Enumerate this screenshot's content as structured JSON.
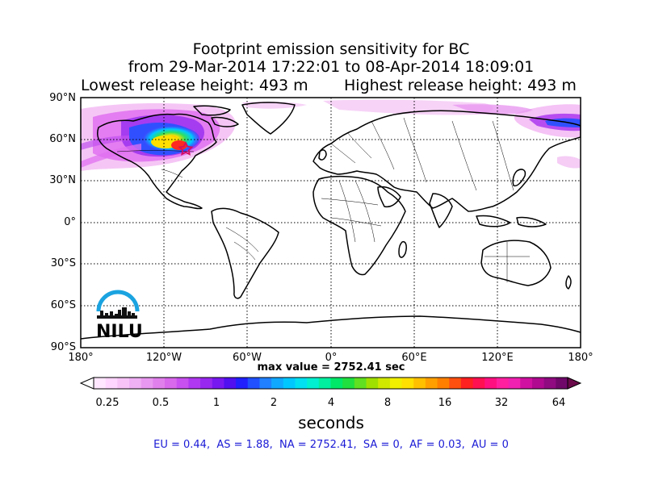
{
  "title": {
    "line1": "Footprint emission sensitivity for BC",
    "line2": "from 29-Mar-2014 17:22:01 to 08-Apr-2014 18:09:01",
    "lowest": "Lowest release height: 493 m",
    "highest": "Highest release height: 493 m"
  },
  "lat_labels": [
    "90°N",
    "60°N",
    "30°N",
    "0°",
    "30°S",
    "60°S",
    "90°S"
  ],
  "lon_labels": [
    "180°",
    "120°W",
    "60°W",
    "0°",
    "60°E",
    "120°E",
    "180°"
  ],
  "max_value": "max value = 2752.41 sec",
  "colorbar": {
    "ticks": [
      "0.25",
      "0.5",
      "1",
      "2",
      "4",
      "8",
      "16",
      "32",
      "64"
    ],
    "label": "seconds"
  },
  "regions_text": "EU = 0.44,  AS = 1.88,  NA = 2752.41,  SA = 0,  AF = 0.03,  AU = 0",
  "logo": {
    "text": "NILU",
    "color": "#1aa3e0"
  },
  "release_marker": {
    "lat": 53,
    "lon": -104,
    "symbol": "star",
    "color": "#d01060"
  }
}
